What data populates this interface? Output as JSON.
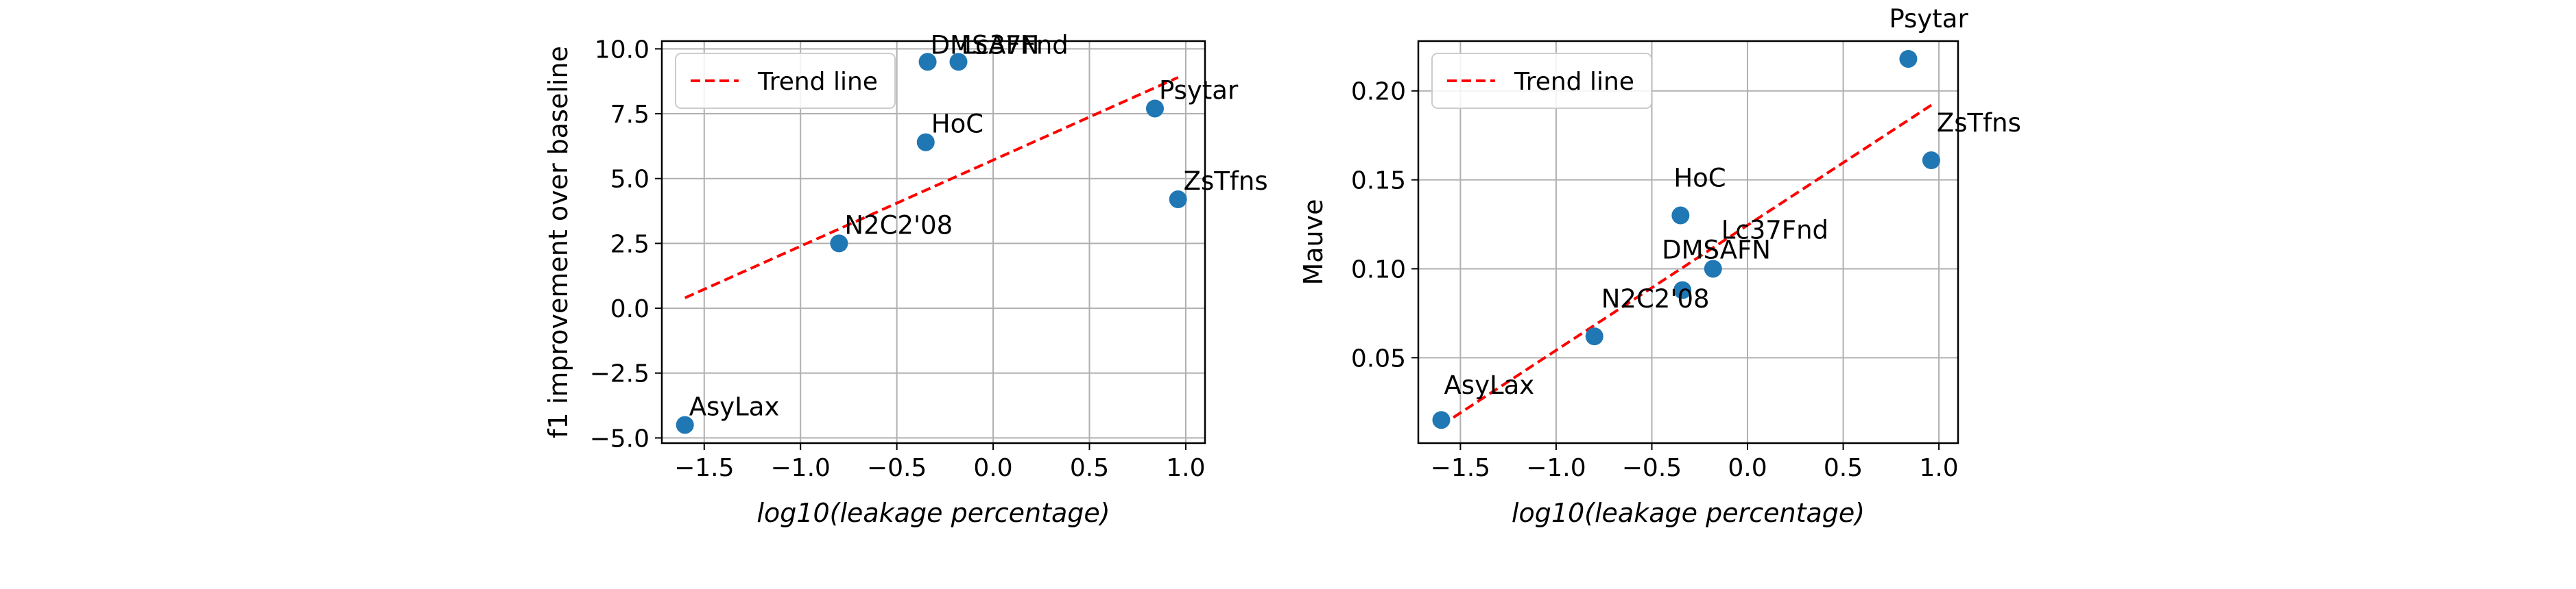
{
  "chart_data": [
    {
      "type": "scatter",
      "title": "",
      "xlabel": "log10(leakage percentage)",
      "ylabel": "f1 improvement over baseline",
      "xlim": [
        -1.72,
        1.1
      ],
      "ylim": [
        -5.2,
        10.3
      ],
      "xticks": [
        -1.5,
        -1.0,
        -0.5,
        0.0,
        0.5,
        1.0
      ],
      "xtick_labels": [
        "−1.5",
        "−1.0",
        "−0.5",
        "0.0",
        "0.5",
        "1.0"
      ],
      "yticks": [
        -5.0,
        -2.5,
        0.0,
        2.5,
        5.0,
        7.5,
        10.0
      ],
      "ytick_labels": [
        "−5.0",
        "−2.5",
        "0.0",
        "2.5",
        "5.0",
        "7.5",
        "10.0"
      ],
      "grid": true,
      "legend": {
        "position": "top-left",
        "entries": [
          "Trend line"
        ]
      },
      "points": [
        {
          "label": "AsyLax",
          "x": -1.6,
          "y": -4.5
        },
        {
          "label": "N2C2'08",
          "x": -0.8,
          "y": 2.5
        },
        {
          "label": "HoC",
          "x": -0.35,
          "y": 6.4
        },
        {
          "label": "DMSAFN",
          "x": -0.34,
          "y": 9.5
        },
        {
          "label": "Lc37Fnd",
          "x": -0.18,
          "y": 9.5
        },
        {
          "label": "Psytar",
          "x": 0.84,
          "y": 7.7
        },
        {
          "label": "ZsTfns",
          "x": 0.96,
          "y": 4.2
        }
      ],
      "trend_line": {
        "label": "Trend line",
        "x": [
          -1.6,
          0.96
        ],
        "y": [
          0.4,
          8.9
        ]
      }
    },
    {
      "type": "scatter",
      "title": "",
      "xlabel": "log10(leakage percentage)",
      "ylabel": "Mauve",
      "xlim": [
        -1.72,
        1.1
      ],
      "ylim": [
        0.002,
        0.228
      ],
      "xticks": [
        -1.5,
        -1.0,
        -0.5,
        0.0,
        0.5,
        1.0
      ],
      "xtick_labels": [
        "−1.5",
        "−1.0",
        "−0.5",
        "0.0",
        "0.5",
        "1.0"
      ],
      "yticks": [
        0.05,
        0.1,
        0.15,
        0.2
      ],
      "ytick_labels": [
        "0.05",
        "0.10",
        "0.15",
        "0.20"
      ],
      "grid": true,
      "legend": {
        "position": "top-left",
        "entries": [
          "Trend line"
        ]
      },
      "points": [
        {
          "label": "AsyLax",
          "x": -1.6,
          "y": 0.015
        },
        {
          "label": "N2C2'08",
          "x": -0.8,
          "y": 0.062
        },
        {
          "label": "HoC",
          "x": -0.35,
          "y": 0.13
        },
        {
          "label": "DMSAFN",
          "x": -0.34,
          "y": 0.088
        },
        {
          "label": "Lc37Fnd",
          "x": -0.18,
          "y": 0.1
        },
        {
          "label": "Psytar",
          "x": 0.84,
          "y": 0.218
        },
        {
          "label": "ZsTfns",
          "x": 0.96,
          "y": 0.161
        }
      ],
      "trend_line": {
        "label": "Trend line",
        "x": [
          -1.6,
          0.96
        ],
        "y": [
          0.012,
          0.192
        ]
      }
    }
  ],
  "colors": {
    "point": "#1f77b4",
    "trend": "#ff0000",
    "grid": "#b0b0b0",
    "axis": "#000000"
  }
}
